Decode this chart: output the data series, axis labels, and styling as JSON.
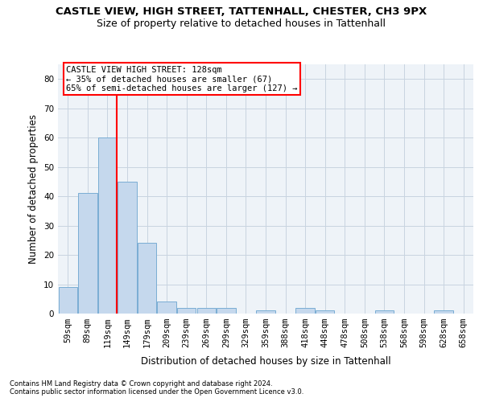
{
  "title1": "CASTLE VIEW, HIGH STREET, TATTENHALL, CHESTER, CH3 9PX",
  "title2": "Size of property relative to detached houses in Tattenhall",
  "xlabel": "Distribution of detached houses by size in Tattenhall",
  "ylabel": "Number of detached properties",
  "footnote1": "Contains HM Land Registry data © Crown copyright and database right 2024.",
  "footnote2": "Contains public sector information licensed under the Open Government Licence v3.0.",
  "bar_labels": [
    "59sqm",
    "89sqm",
    "119sqm",
    "149sqm",
    "179sqm",
    "209sqm",
    "239sqm",
    "269sqm",
    "299sqm",
    "329sqm",
    "359sqm",
    "388sqm",
    "418sqm",
    "448sqm",
    "478sqm",
    "508sqm",
    "538sqm",
    "568sqm",
    "598sqm",
    "628sqm",
    "658sqm"
  ],
  "bar_values": [
    9,
    41,
    60,
    45,
    24,
    4,
    2,
    2,
    2,
    0,
    1,
    0,
    2,
    1,
    0,
    0,
    1,
    0,
    0,
    1,
    0
  ],
  "bar_color": "#c5d8ed",
  "bar_edge_color": "#7aadd4",
  "vline_color": "red",
  "annotation_text": "CASTLE VIEW HIGH STREET: 128sqm\n← 35% of detached houses are smaller (67)\n65% of semi-detached houses are larger (127) →",
  "annotation_box_color": "white",
  "annotation_box_edge_color": "red",
  "ylim": [
    0,
    85
  ],
  "yticks": [
    0,
    10,
    20,
    30,
    40,
    50,
    60,
    70,
    80
  ],
  "grid_color": "#c8d4e0",
  "background_color": "#eef3f8",
  "title1_fontsize": 9.5,
  "title2_fontsize": 9,
  "axis_label_fontsize": 8.5,
  "tick_fontsize": 7.5,
  "annotation_fontsize": 7.5,
  "footnote_fontsize": 6.0
}
